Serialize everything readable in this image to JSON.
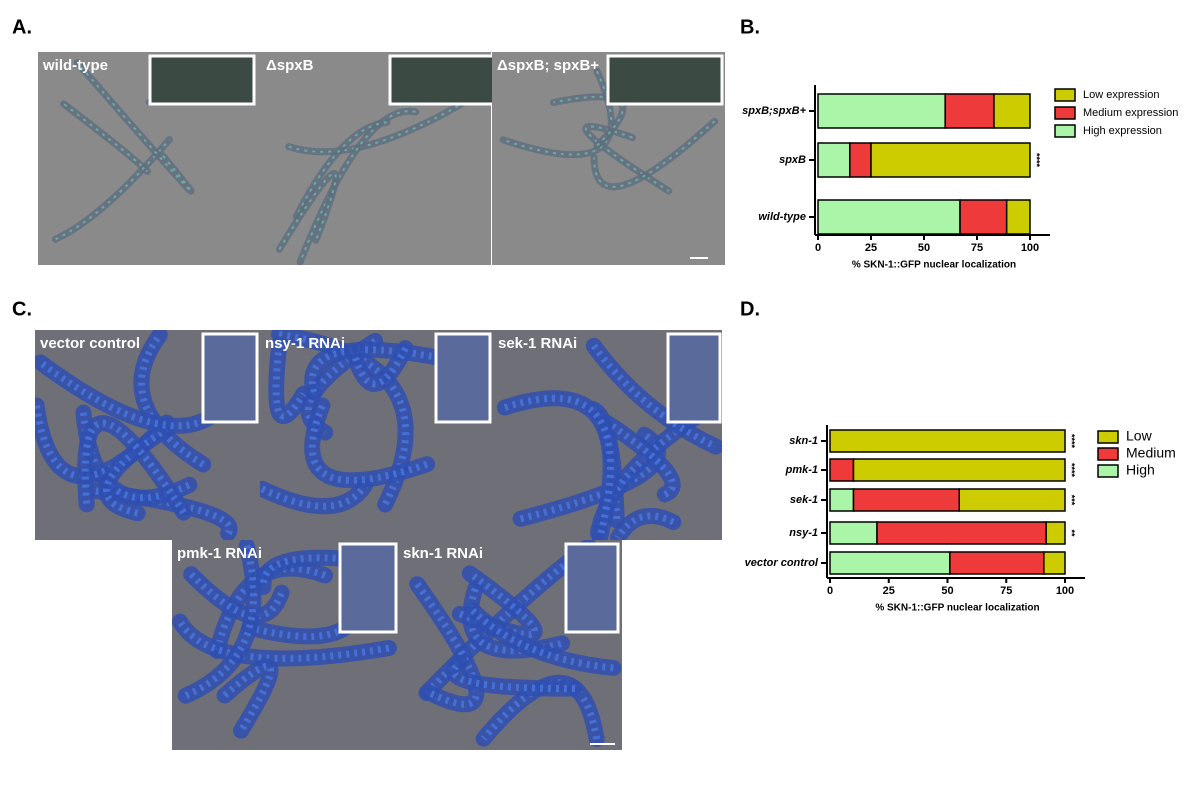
{
  "panel_labels": [
    "A.",
    "B.",
    "C.",
    "D."
  ],
  "images": [
    {
      "label": "wild-type"
    },
    {
      "label": "ΔspxB"
    },
    {
      "label": "ΔspxB; spxB+"
    },
    {
      "label": "vector control"
    },
    {
      "label": "nsy-1 RNAi"
    },
    {
      "label": "sek-1 RNAi"
    },
    {
      "label": "pmk-1 RNAi"
    },
    {
      "label": "skn-1 RNAi"
    }
  ],
  "chart_data": [
    {
      "type": "bar",
      "orientation": "horizontal",
      "stacked": true,
      "categories": [
        "spxB;spxB+",
        "spxB",
        "wild-type"
      ],
      "series": [
        {
          "name": "High expression",
          "color": "#aaf5a8",
          "values": [
            60,
            15,
            67
          ]
        },
        {
          "name": "Medium expression",
          "color": "#ee3a3a",
          "values": [
            23,
            10,
            22
          ]
        },
        {
          "name": "Low expression",
          "color": "#cccc00",
          "values": [
            17,
            75,
            11
          ]
        }
      ],
      "annotations": [
        null,
        "****",
        null
      ],
      "xlabel": "% SKN-1::GFP nuclear localization",
      "xlim": [
        0,
        100
      ],
      "xticks": [
        0,
        25,
        50,
        75,
        100
      ],
      "legend": "right"
    },
    {
      "type": "bar",
      "orientation": "horizontal",
      "stacked": true,
      "categories": [
        "skn-1",
        "pmk-1",
        "sek-1",
        "nsy-1",
        "vector control"
      ],
      "series": [
        {
          "name": "High",
          "color": "#aaf5a8",
          "values": [
            0,
            0,
            10,
            20,
            51
          ]
        },
        {
          "name": "Medium",
          "color": "#ee3a3a",
          "values": [
            0,
            10,
            45,
            72,
            40
          ]
        },
        {
          "name": "Low",
          "color": "#cccc00",
          "values": [
            100,
            90,
            45,
            8,
            9
          ]
        }
      ],
      "annotations": [
        "****",
        "****",
        "***",
        "**",
        null
      ],
      "xlabel": "% SKN-1::GFP nuclear localization",
      "xlim": [
        0,
        100
      ],
      "xticks": [
        0,
        25,
        50,
        75,
        100
      ],
      "legend": "right"
    }
  ]
}
